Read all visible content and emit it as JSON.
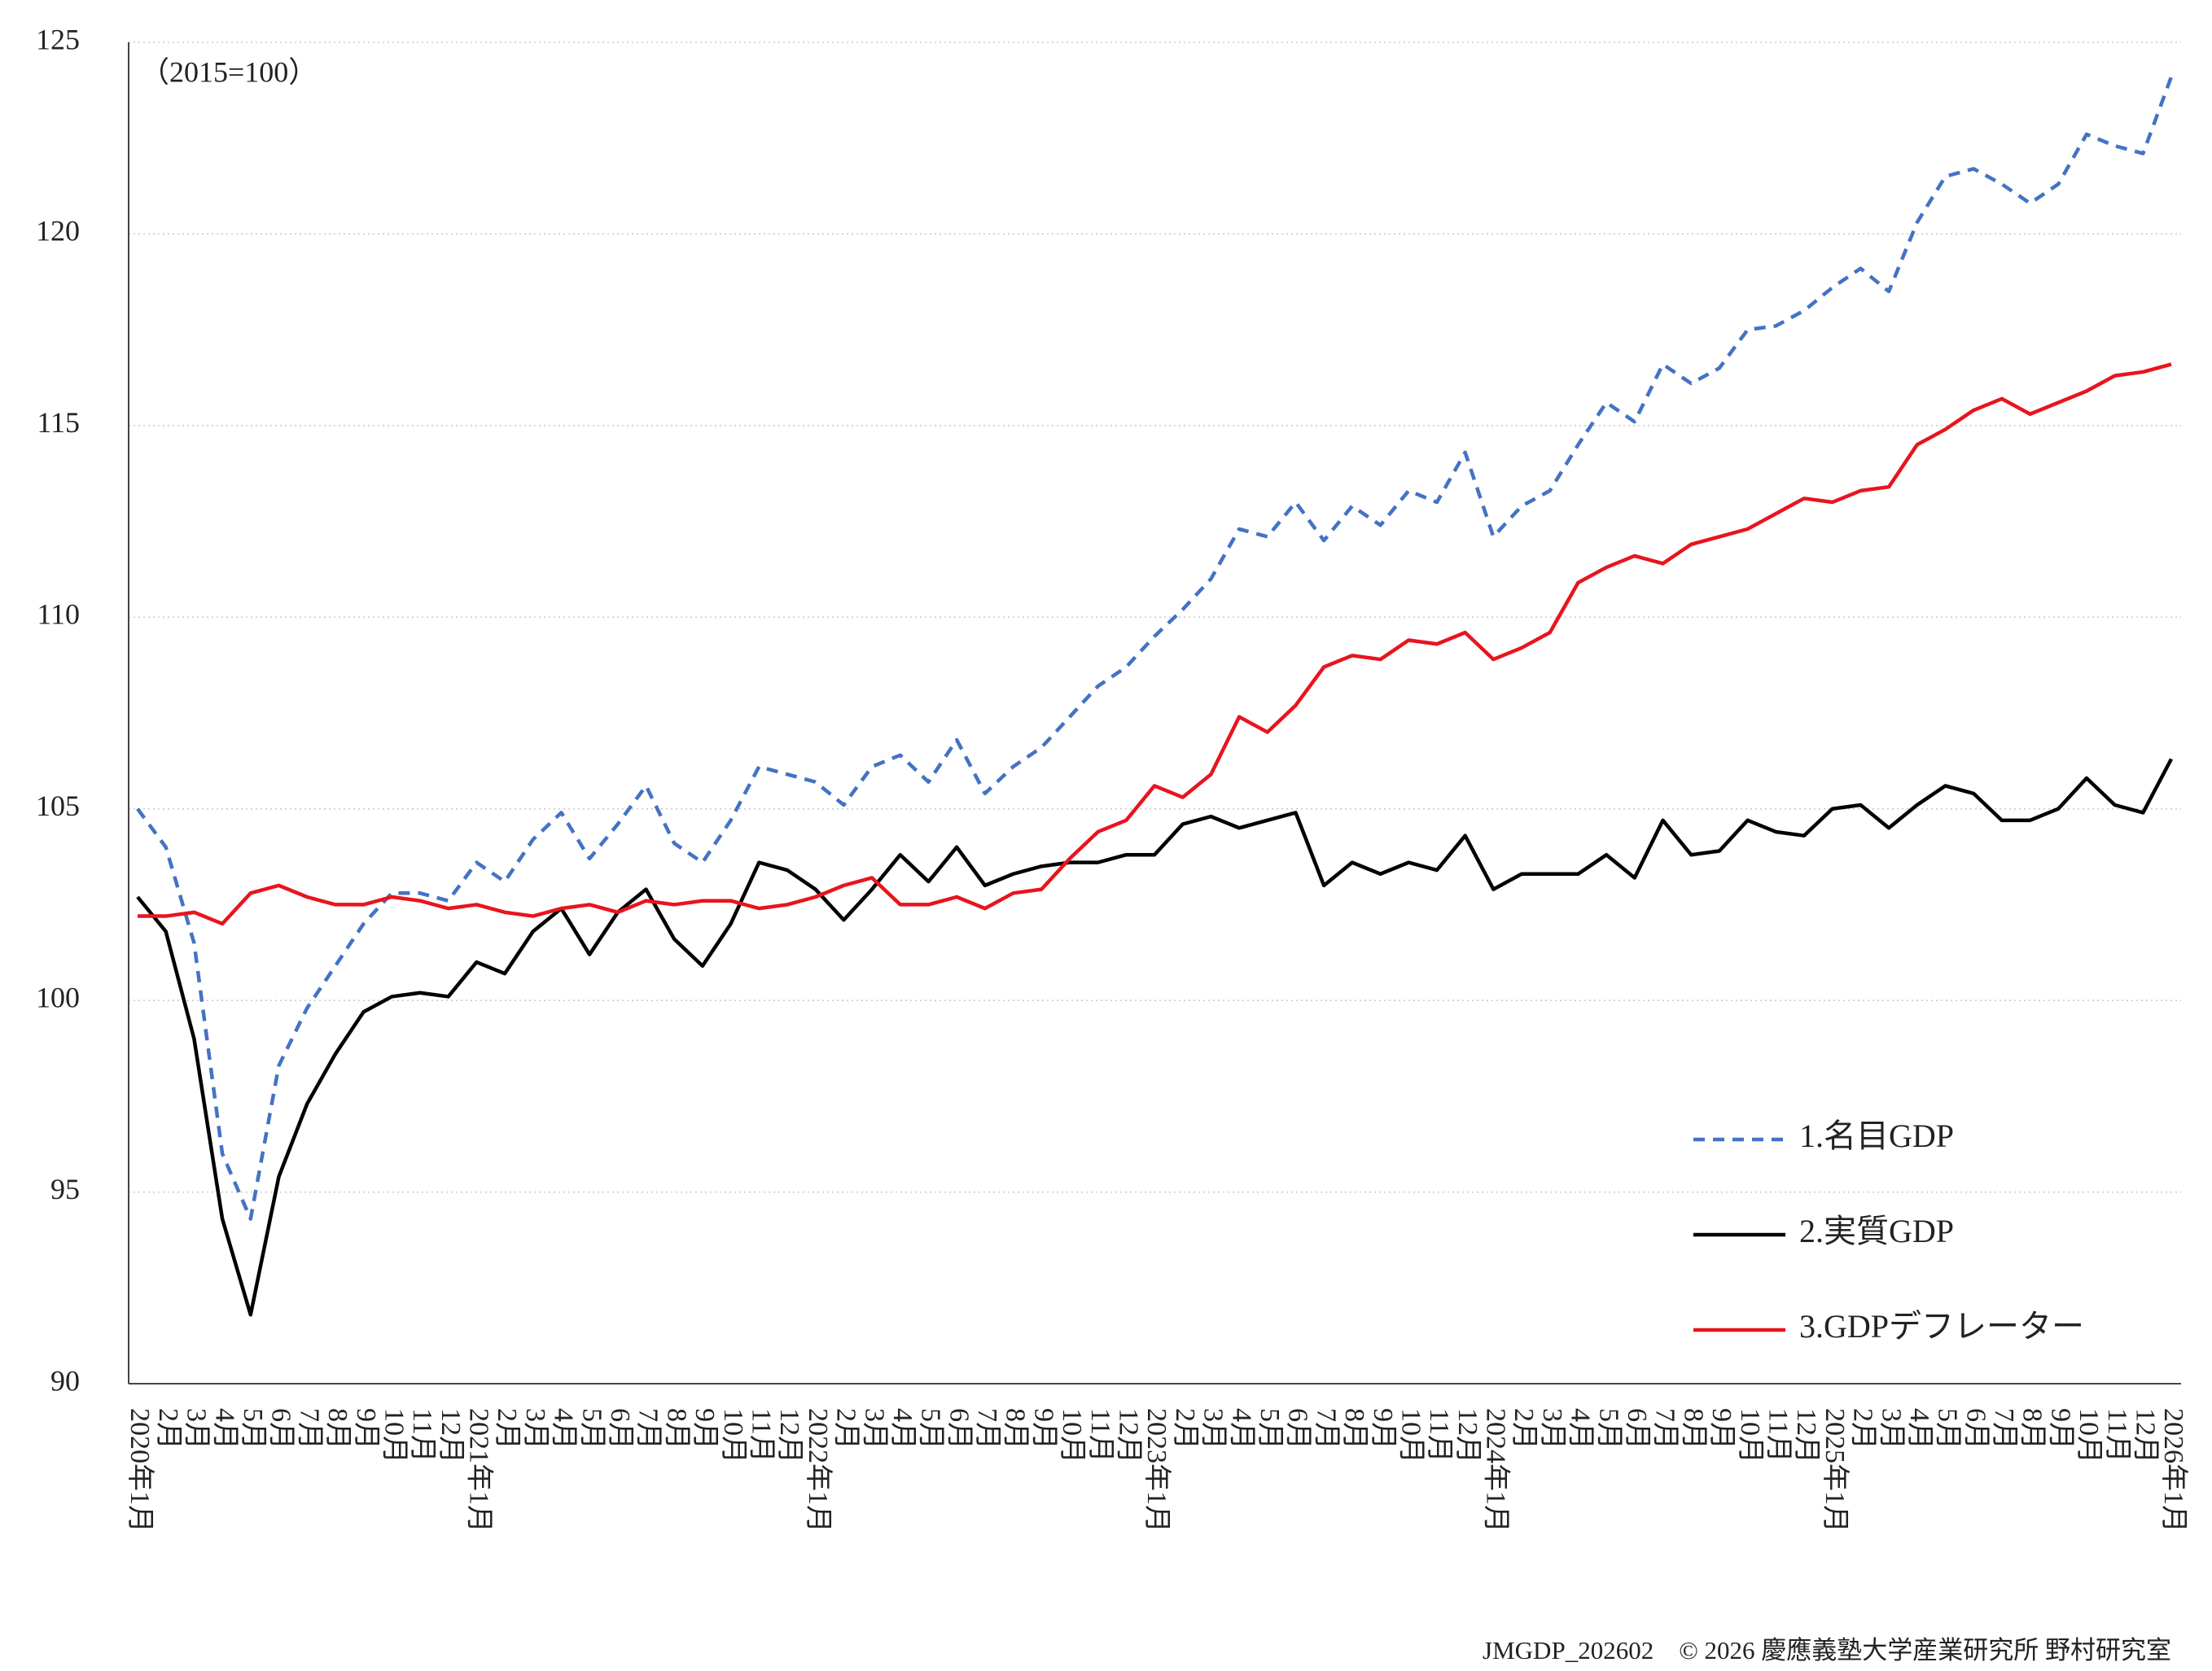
{
  "chart_data": {
    "type": "line",
    "annotation": "（2015=100）",
    "footer": "JMGDP_202602　© 2026 慶應義塾大学産業研究所 野村研究室",
    "categories": [
      "2020年1月",
      "2月",
      "3月",
      "4月",
      "5月",
      "6月",
      "7月",
      "8月",
      "9月",
      "10月",
      "11月",
      "12月",
      "2021年1月",
      "2月",
      "3月",
      "4月",
      "5月",
      "6月",
      "7月",
      "8月",
      "9月",
      "10月",
      "11月",
      "12月",
      "2022年1月",
      "2月",
      "3月",
      "4月",
      "5月",
      "6月",
      "7月",
      "8月",
      "9月",
      "10月",
      "11月",
      "12月",
      "2023年1月",
      "2月",
      "3月",
      "4月",
      "5月",
      "6月",
      "7月",
      "8月",
      "9月",
      "10月",
      "11月",
      "12月",
      "2024年1月",
      "2月",
      "3月",
      "4月",
      "5月",
      "6月",
      "7月",
      "8月",
      "9月",
      "10月",
      "11月",
      "12月",
      "2025年1月",
      "2月",
      "3月",
      "4月",
      "5月",
      "6月",
      "7月",
      "8月",
      "9月",
      "10月",
      "11月",
      "12月",
      "2026年1月"
    ],
    "series": [
      {
        "name": "1.名目GDP",
        "color": "#4472c4",
        "line_style": "dashed",
        "values": [
          105.0,
          104.0,
          101.5,
          96.0,
          94.3,
          98.3,
          99.8,
          100.9,
          102.0,
          102.8,
          102.8,
          102.6,
          103.6,
          103.1,
          104.2,
          104.9,
          103.7,
          104.6,
          105.6,
          104.1,
          103.6,
          104.7,
          106.1,
          105.9,
          105.7,
          105.1,
          106.1,
          106.4,
          105.7,
          106.8,
          105.4,
          106.1,
          106.6,
          107.4,
          108.2,
          108.7,
          109.5,
          110.2,
          111.0,
          112.3,
          112.1,
          113.0,
          112.0,
          112.9,
          112.4,
          113.3,
          113.0,
          114.3,
          112.1,
          112.9,
          113.3,
          114.5,
          115.6,
          115.1,
          116.6,
          116.1,
          116.5,
          117.5,
          117.6,
          118.0,
          118.6,
          119.1,
          118.5,
          120.3,
          121.5,
          121.7,
          121.3,
          120.8,
          121.3,
          122.6,
          122.3,
          122.1,
          124.1
        ]
      },
      {
        "name": "2.実質GDP",
        "color": "#000000",
        "line_style": "solid",
        "values": [
          102.7,
          101.8,
          99.0,
          94.3,
          91.8,
          95.4,
          97.3,
          98.6,
          99.7,
          100.1,
          100.2,
          100.1,
          101.0,
          100.7,
          101.8,
          102.4,
          101.2,
          102.3,
          102.9,
          101.6,
          100.9,
          102.0,
          103.6,
          103.4,
          102.9,
          102.1,
          102.9,
          103.8,
          103.1,
          104.0,
          103.0,
          103.3,
          103.5,
          103.6,
          103.6,
          103.8,
          103.8,
          104.6,
          104.8,
          104.5,
          104.7,
          104.9,
          103.0,
          103.6,
          103.3,
          103.6,
          103.4,
          104.3,
          102.9,
          103.3,
          103.3,
          103.3,
          103.8,
          103.2,
          104.7,
          103.8,
          103.9,
          104.7,
          104.4,
          104.3,
          105.0,
          105.1,
          104.5,
          105.1,
          105.6,
          105.4,
          104.7,
          104.7,
          105.0,
          105.8,
          105.1,
          104.9,
          106.3
        ]
      },
      {
        "name": "3.GDPデフレーター",
        "color": "#e8141e",
        "line_style": "solid",
        "values": [
          102.2,
          102.2,
          102.3,
          102.0,
          102.8,
          103.0,
          102.7,
          102.5,
          102.5,
          102.7,
          102.6,
          102.4,
          102.5,
          102.3,
          102.2,
          102.4,
          102.5,
          102.3,
          102.6,
          102.5,
          102.6,
          102.6,
          102.4,
          102.5,
          102.7,
          103.0,
          103.2,
          102.5,
          102.5,
          102.7,
          102.4,
          102.8,
          102.9,
          103.7,
          104.4,
          104.7,
          105.6,
          105.3,
          105.9,
          107.4,
          107.0,
          107.7,
          108.7,
          109.0,
          108.9,
          109.4,
          109.3,
          109.6,
          108.9,
          109.2,
          109.6,
          110.9,
          111.3,
          111.6,
          111.4,
          111.9,
          112.1,
          112.3,
          112.7,
          113.1,
          113.0,
          113.3,
          113.4,
          114.5,
          114.9,
          115.4,
          115.7,
          115.3,
          115.6,
          115.9,
          116.3,
          116.4,
          116.6
        ]
      }
    ],
    "ylim": [
      90,
      125
    ],
    "yticks": [
      90,
      95,
      100,
      105,
      110,
      115,
      120,
      125
    ],
    "grid": true,
    "legend_position": "right"
  }
}
